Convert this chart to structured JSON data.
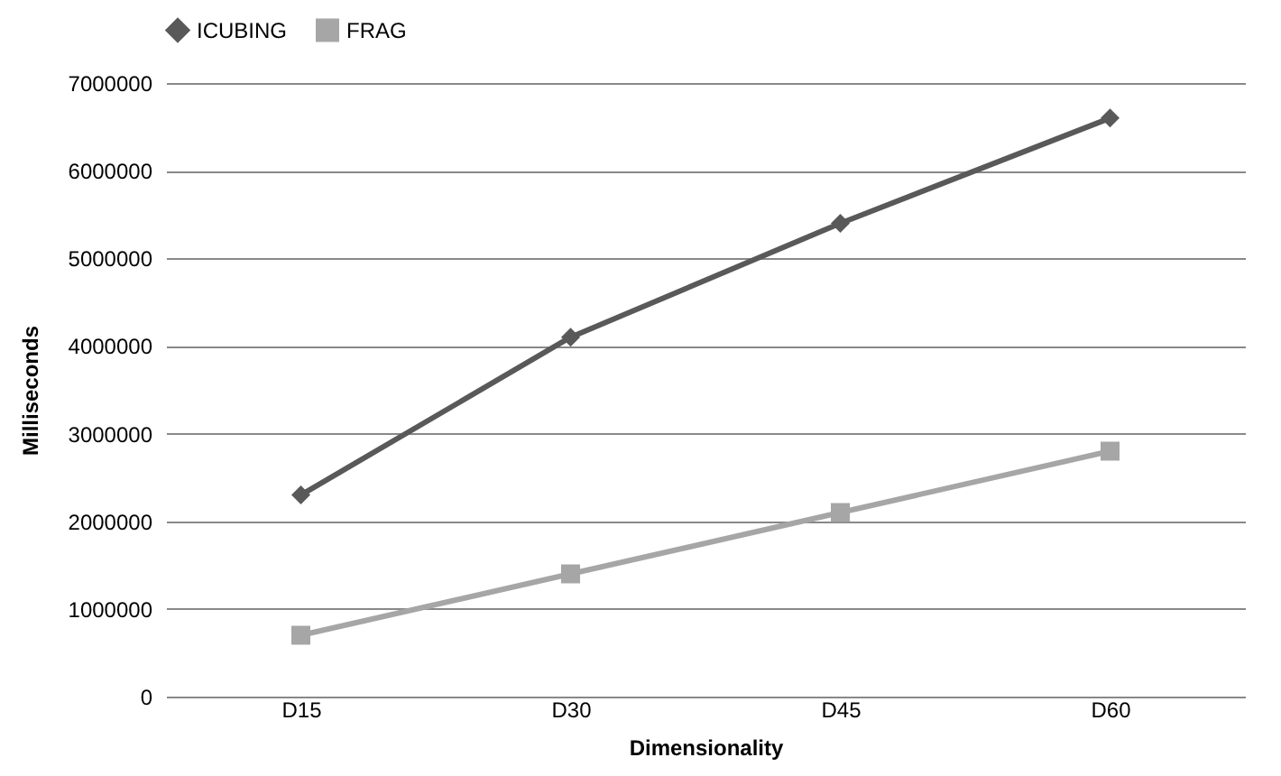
{
  "chart_data": {
    "type": "line",
    "xlabel": "Dimensionality",
    "ylabel": "Milliseconds",
    "categories": [
      "D15",
      "D30",
      "D45",
      "D60"
    ],
    "series": [
      {
        "name": "ICUBING",
        "color": "#595959",
        "marker": "diamond",
        "values": [
          2300000,
          4100000,
          5400000,
          6600000
        ]
      },
      {
        "name": "FRAG",
        "color": "#a6a6a6",
        "marker": "square",
        "values": [
          700000,
          1400000,
          2100000,
          2800000
        ]
      }
    ],
    "ylim": [
      0,
      7000000
    ],
    "yticks": [
      0,
      1000000,
      2000000,
      3000000,
      4000000,
      5000000,
      6000000,
      7000000
    ],
    "grid": "y",
    "legend": "top",
    "line_style": "solid"
  }
}
